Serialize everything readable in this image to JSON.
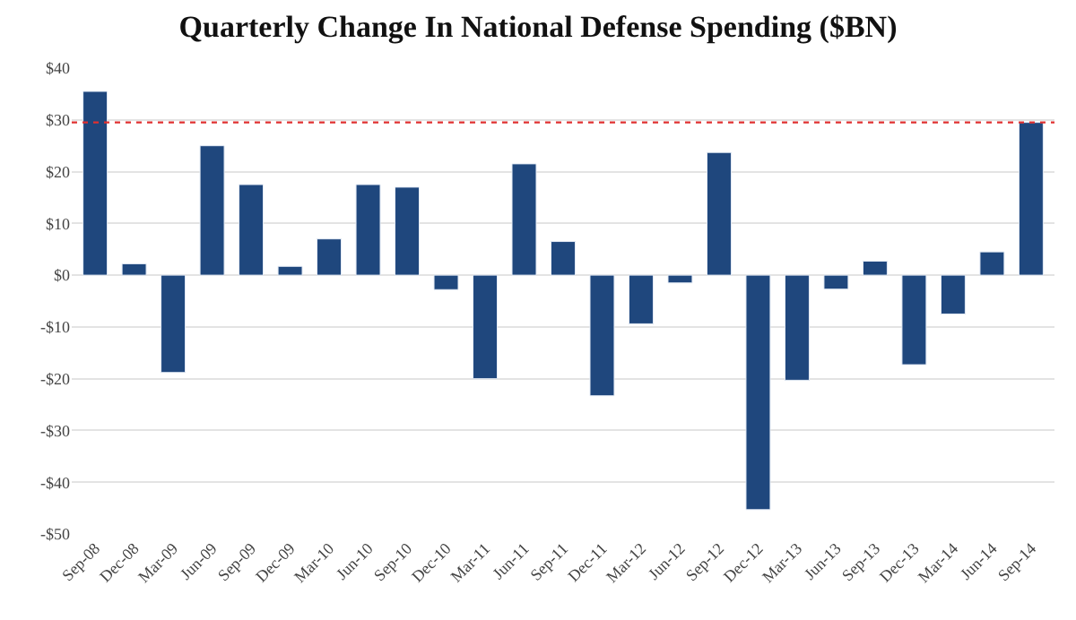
{
  "chart_data": {
    "type": "bar",
    "title": "Quarterly Change In National Defense Spending ($BN)",
    "categories": [
      "Sep-08",
      "Dec-08",
      "Mar-09",
      "Jun-09",
      "Sep-09",
      "Dec-09",
      "Mar-10",
      "Jun-10",
      "Sep-10",
      "Dec-10",
      "Mar-11",
      "Jun-11",
      "Sep-11",
      "Dec-11",
      "Mar-12",
      "Jun-12",
      "Sep-12",
      "Dec-12",
      "Mar-13",
      "Jun-13",
      "Sep-13",
      "Dec-13",
      "Mar-14",
      "Jun-14",
      "Sep-14"
    ],
    "values": [
      35.5,
      2.2,
      -18.8,
      25,
      17.5,
      1.7,
      7,
      17.5,
      17,
      -2.8,
      -20,
      21.5,
      6.5,
      -23.3,
      -9.4,
      -1.5,
      23.7,
      -45.3,
      -20.3,
      -2.7,
      2.7,
      -17.3,
      -7.5,
      4.5,
      29.5
    ],
    "color": "#1f477d",
    "ylim": [
      -50,
      40
    ],
    "yticks": [
      {
        "value": -50,
        "label": "-$50"
      },
      {
        "value": -40,
        "label": "-$40"
      },
      {
        "value": -30,
        "label": "-$30"
      },
      {
        "value": -20,
        "label": "-$20"
      },
      {
        "value": -10,
        "label": "-$10"
      },
      {
        "value": 0,
        "label": "$0"
      },
      {
        "value": 10,
        "label": "$10"
      },
      {
        "value": 20,
        "label": "$20"
      },
      {
        "value": 30,
        "label": "$30"
      },
      {
        "value": 40,
        "label": "$40"
      }
    ],
    "grid": "y",
    "ref_lines": [
      {
        "axis": "y",
        "value": 29.5,
        "color": "#e03030",
        "line_style": "dotted"
      }
    ]
  }
}
